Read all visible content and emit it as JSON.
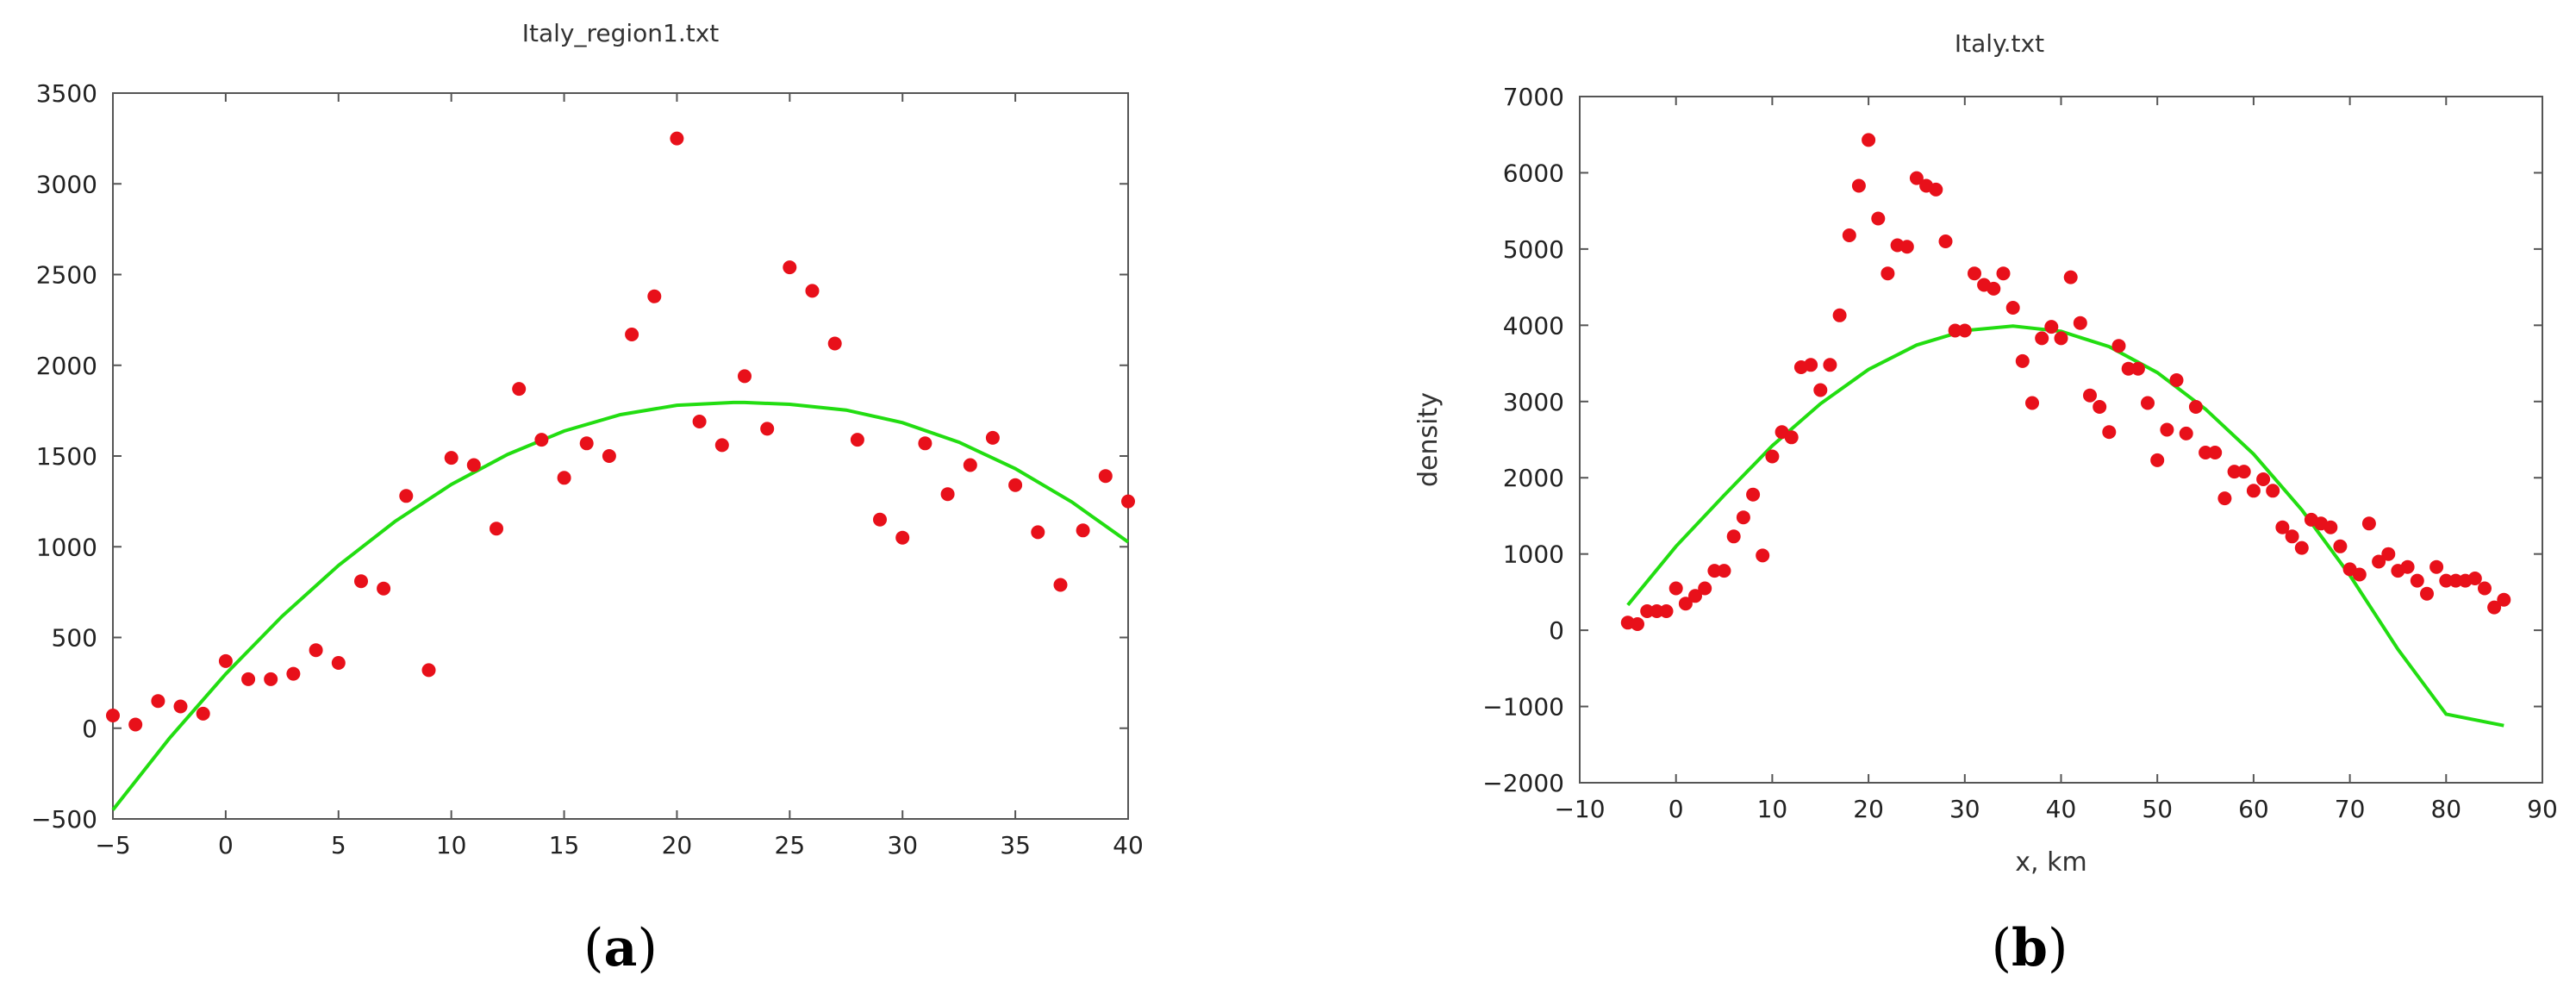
{
  "chart_data": [
    {
      "type": "scatter",
      "panel_label": "a",
      "title": "Italy_region1.txt",
      "xlabel": "",
      "ylabel": "",
      "xlim": [
        -5,
        40
      ],
      "ylim": [
        -500,
        3500
      ],
      "xticks": [
        -5,
        0,
        5,
        10,
        15,
        20,
        25,
        30,
        35,
        40
      ],
      "yticks": [
        -500,
        0,
        500,
        1000,
        1500,
        2000,
        2500,
        3000,
        3500
      ],
      "grid": false,
      "point_color": "#e8101a",
      "fit_color": "#22dd11",
      "series": [
        {
          "name": "data",
          "x": [
            -5,
            -4,
            -3,
            -2,
            -1,
            0,
            1,
            2,
            3,
            4,
            5,
            6,
            7,
            8,
            9,
            10,
            11,
            12,
            13,
            14,
            15,
            16,
            17,
            18,
            19,
            20,
            21,
            22,
            23,
            24,
            25,
            26,
            27,
            28,
            29,
            30,
            31,
            32,
            33,
            34,
            35,
            36,
            37,
            38,
            39,
            40
          ],
          "y": [
            70,
            20,
            150,
            120,
            80,
            370,
            270,
            270,
            300,
            430,
            360,
            810,
            770,
            1280,
            320,
            1490,
            1450,
            1100,
            1870,
            1590,
            1380,
            1570,
            1500,
            2170,
            2380,
            3250,
            1690,
            1560,
            1940,
            1650,
            2540,
            2410,
            2120,
            1590,
            1150,
            1050,
            1570,
            1290,
            1450,
            1600,
            1340,
            1080,
            790,
            1090,
            1390,
            1250
          ]
        },
        {
          "name": "fit",
          "x": [
            -5,
            -2.5,
            0,
            2.5,
            5,
            7.5,
            10,
            12.5,
            15,
            17.5,
            20,
            22.5,
            23,
            25,
            27.5,
            30,
            32.5,
            35,
            37.5,
            40
          ],
          "y": [
            -450,
            -57,
            299,
            617,
            897,
            1139,
            1343,
            1509,
            1638,
            1728,
            1780,
            1795,
            1795,
            1785,
            1753,
            1684,
            1576,
            1430,
            1247,
            1026
          ]
        }
      ]
    },
    {
      "type": "scatter",
      "panel_label": "b",
      "title": "Italy.txt",
      "xlabel": "x, km",
      "ylabel": "density",
      "xlim": [
        -10,
        90
      ],
      "ylim": [
        -2000,
        7000
      ],
      "xticks": [
        -10,
        0,
        10,
        20,
        30,
        40,
        50,
        60,
        70,
        80,
        90
      ],
      "yticks": [
        -2000,
        -1000,
        0,
        1000,
        2000,
        3000,
        4000,
        5000,
        6000,
        7000
      ],
      "grid": false,
      "point_color": "#e8101a",
      "fit_color": "#22dd11",
      "series": [
        {
          "name": "data",
          "x": [
            -5,
            -4,
            -3,
            -2,
            -1,
            0,
            1,
            2,
            3,
            4,
            5,
            6,
            7,
            8,
            9,
            10,
            11,
            12,
            13,
            14,
            15,
            16,
            17,
            18,
            19,
            20,
            21,
            22,
            23,
            24,
            25,
            26,
            27,
            28,
            29,
            30,
            31,
            32,
            33,
            34,
            35,
            36,
            37,
            38,
            39,
            40,
            41,
            42,
            43,
            44,
            45,
            46,
            47,
            48,
            49,
            50,
            51,
            52,
            53,
            54,
            55,
            56,
            57,
            58,
            59,
            60,
            61,
            62,
            63,
            64,
            65,
            66,
            67,
            68,
            69,
            70,
            71,
            72,
            73,
            74,
            75,
            76,
            77,
            78,
            79,
            80,
            81,
            82,
            83,
            84,
            85,
            86
          ],
          "y": [
            100,
            80,
            250,
            250,
            250,
            550,
            350,
            450,
            550,
            780,
            780,
            1230,
            1480,
            1780,
            980,
            2280,
            2600,
            2530,
            3450,
            3480,
            3150,
            3480,
            4130,
            5180,
            5830,
            6430,
            5400,
            4680,
            5050,
            5030,
            5930,
            5830,
            5780,
            5100,
            3930,
            3930,
            4680,
            4530,
            4480,
            4680,
            4230,
            3530,
            2980,
            3830,
            3980,
            3830,
            4630,
            4030,
            3080,
            2930,
            2600,
            3730,
            3430,
            3430,
            2980,
            2230,
            2630,
            3280,
            2580,
            2930,
            2330,
            2330,
            1730,
            2080,
            2080,
            1830,
            1980,
            1830,
            1350,
            1230,
            1080,
            1450,
            1400,
            1350,
            1100,
            800,
            730,
            1400,
            900,
            1000,
            780,
            830,
            650,
            480,
            830,
            650,
            650,
            650,
            680,
            550,
            300,
            400
          ]
        },
        {
          "name": "fit",
          "x": [
            -5,
            0,
            5,
            10,
            15,
            20,
            25,
            30,
            35,
            40,
            45,
            50,
            55,
            60,
            65,
            70,
            75,
            80,
            86
          ],
          "y": [
            330,
            1100,
            1770,
            2420,
            2970,
            3420,
            3740,
            3930,
            3990,
            3920,
            3720,
            3380,
            2900,
            2310,
            1580,
            720,
            -250,
            -1100,
            -1250
          ]
        }
      ]
    }
  ]
}
